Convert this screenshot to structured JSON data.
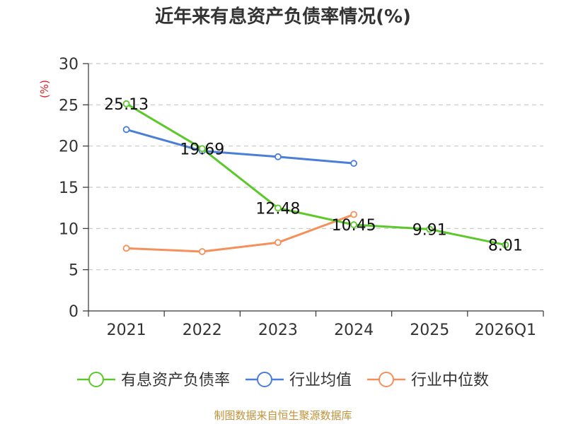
{
  "chart_data": {
    "type": "line",
    "title": "近年来有息资产负债率情况(%)",
    "ylabel": "(%)",
    "xlabel": "",
    "categories": [
      "2021",
      "2022",
      "2023",
      "2024",
      "2025",
      "2026Q1"
    ],
    "ylim": [
      0,
      30
    ],
    "yticks": [
      0,
      5,
      10,
      15,
      20,
      25,
      30
    ],
    "grid": true,
    "legend_position": "bottom",
    "series": [
      {
        "name": "有息资产负债率",
        "color": "#5cc82a",
        "values": [
          25.13,
          19.69,
          12.48,
          10.45,
          9.91,
          8.01
        ],
        "labels": [
          "25.13",
          "19.69",
          "12.48",
          "10.45",
          "9.91",
          "8.01"
        ]
      },
      {
        "name": "行业均值",
        "color": "#4a7fd8",
        "values": [
          22.0,
          19.4,
          18.7,
          17.9,
          null,
          null
        ]
      },
      {
        "name": "行业中位数",
        "color": "#f5905a",
        "values": [
          7.6,
          7.2,
          8.3,
          11.7,
          null,
          null
        ]
      }
    ],
    "source": "制图数据来自恒生聚源数据库"
  }
}
